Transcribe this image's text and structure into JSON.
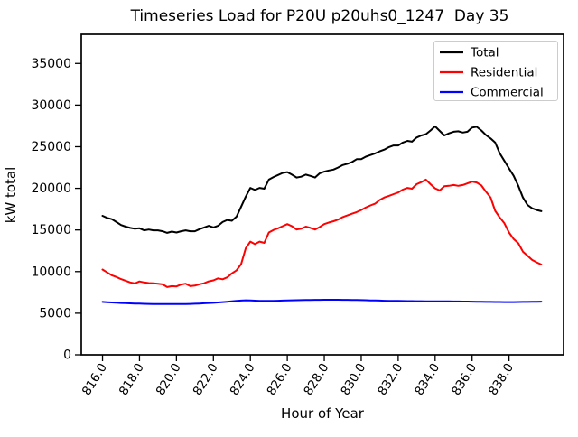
{
  "chart_data": {
    "type": "line",
    "title": "Timeseries Load for P20U p20uhs0_1247  Day 35",
    "xlabel": "Hour of Year",
    "ylabel": "kW total",
    "xlim": [
      814.85,
      840.95
    ],
    "ylim": [
      0,
      38500
    ],
    "grid": false,
    "legend_position": "upper right",
    "x_ticks": [
      816,
      818,
      820,
      822,
      824,
      826,
      828,
      830,
      832,
      834,
      836,
      838
    ],
    "x_tick_labels": [
      "816.0",
      "818.0",
      "820.0",
      "822.0",
      "824.0",
      "826.0",
      "828.0",
      "830.0",
      "832.0",
      "834.0",
      "836.0",
      "838.0"
    ],
    "y_ticks": [
      0,
      5000,
      10000,
      15000,
      20000,
      25000,
      30000,
      35000
    ],
    "y_tick_labels": [
      "0",
      "5000",
      "10000",
      "15000",
      "20000",
      "25000",
      "30000",
      "35000"
    ],
    "x": [
      816,
      816.25,
      816.5,
      816.75,
      817,
      817.25,
      817.5,
      817.75,
      818,
      818.25,
      818.5,
      818.75,
      819,
      819.25,
      819.5,
      819.75,
      820,
      820.25,
      820.5,
      820.75,
      821,
      821.25,
      821.5,
      821.75,
      822,
      822.25,
      822.5,
      822.75,
      823,
      823.25,
      823.5,
      823.75,
      824,
      824.25,
      824.5,
      824.75,
      825,
      825.25,
      825.5,
      825.75,
      826,
      826.25,
      826.5,
      826.75,
      827,
      827.25,
      827.5,
      827.75,
      828,
      828.25,
      828.5,
      828.75,
      829,
      829.25,
      829.5,
      829.75,
      830,
      830.25,
      830.5,
      830.75,
      831,
      831.25,
      831.5,
      831.75,
      832,
      832.25,
      832.5,
      832.75,
      833,
      833.25,
      833.5,
      833.75,
      834,
      834.25,
      834.5,
      834.75,
      835,
      835.25,
      835.5,
      835.75,
      836,
      836.25,
      836.5,
      836.75,
      837,
      837.25,
      837.5,
      837.75,
      838,
      838.25,
      838.5,
      838.75,
      839,
      839.25,
      839.5,
      839.75
    ],
    "series": [
      {
        "name": "Total",
        "color": "#000000",
        "values": [
          16700,
          16450,
          16300,
          15950,
          15600,
          15400,
          15250,
          15150,
          15200,
          14950,
          15050,
          14950,
          14950,
          14850,
          14650,
          14800,
          14700,
          14850,
          14950,
          14850,
          14850,
          15100,
          15300,
          15500,
          15300,
          15500,
          15950,
          16200,
          16100,
          16600,
          17800,
          19000,
          20050,
          19800,
          20050,
          19950,
          21050,
          21350,
          21600,
          21850,
          21950,
          21650,
          21300,
          21400,
          21650,
          21500,
          21300,
          21800,
          22000,
          22150,
          22250,
          22500,
          22800,
          22950,
          23150,
          23500,
          23500,
          23800,
          24000,
          24200,
          24450,
          24650,
          24950,
          25150,
          25150,
          25500,
          25700,
          25600,
          26100,
          26350,
          26500,
          26950,
          27450,
          26900,
          26350,
          26600,
          26800,
          26850,
          26700,
          26800,
          27300,
          27400,
          26950,
          26400,
          26000,
          25500,
          24200,
          23300,
          22400,
          21500,
          20300,
          18900,
          18000,
          17600,
          17400,
          17250
        ]
      },
      {
        "name": "Residential",
        "color": "#ff0000",
        "values": [
          10250,
          9900,
          9550,
          9350,
          9100,
          8900,
          8700,
          8580,
          8820,
          8700,
          8620,
          8600,
          8550,
          8470,
          8150,
          8250,
          8220,
          8450,
          8550,
          8250,
          8320,
          8480,
          8600,
          8830,
          8950,
          9190,
          9080,
          9300,
          9780,
          10150,
          10900,
          12800,
          13600,
          13300,
          13600,
          13450,
          14700,
          15000,
          15200,
          15450,
          15700,
          15450,
          15050,
          15150,
          15400,
          15250,
          15050,
          15350,
          15700,
          15900,
          16050,
          16250,
          16550,
          16750,
          16950,
          17150,
          17400,
          17700,
          17950,
          18150,
          18600,
          18900,
          19100,
          19300,
          19500,
          19850,
          20050,
          19950,
          20500,
          20750,
          21050,
          20500,
          20000,
          19750,
          20250,
          20300,
          20400,
          20300,
          20400,
          20600,
          20800,
          20700,
          20350,
          19600,
          18900,
          17300,
          16500,
          15800,
          14700,
          13900,
          13400,
          12400,
          11900,
          11400,
          11100,
          10850
        ]
      },
      {
        "name": "Commercial",
        "color": "#0000ff",
        "values": [
          6350,
          6320,
          6290,
          6260,
          6230,
          6200,
          6180,
          6160,
          6150,
          6130,
          6120,
          6110,
          6100,
          6095,
          6090,
          6090,
          6090,
          6100,
          6110,
          6120,
          6140,
          6160,
          6190,
          6220,
          6250,
          6290,
          6330,
          6380,
          6430,
          6480,
          6520,
          6550,
          6540,
          6510,
          6490,
          6480,
          6480,
          6490,
          6500,
          6520,
          6540,
          6550,
          6560,
          6570,
          6580,
          6590,
          6600,
          6610,
          6620,
          6620,
          6620,
          6620,
          6610,
          6600,
          6590,
          6580,
          6570,
          6560,
          6540,
          6530,
          6520,
          6500,
          6490,
          6480,
          6470,
          6460,
          6450,
          6450,
          6440,
          6440,
          6430,
          6430,
          6430,
          6420,
          6420,
          6420,
          6410,
          6410,
          6400,
          6400,
          6390,
          6380,
          6370,
          6360,
          6350,
          6340,
          6340,
          6330,
          6330,
          6330,
          6340,
          6350,
          6360,
          6370,
          6380,
          6390
        ]
      }
    ]
  }
}
